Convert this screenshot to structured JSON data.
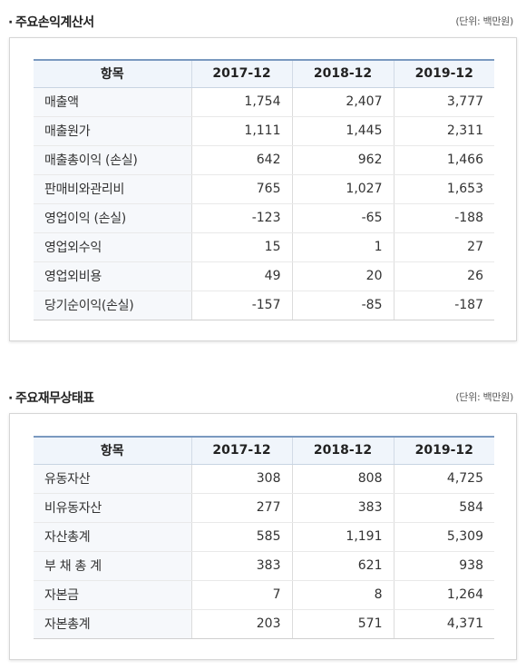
{
  "income": {
    "title": "주요손익계산서",
    "unit": "(단위: 백만원)",
    "headers": [
      "항목",
      "2017-12",
      "2018-12",
      "2019-12"
    ],
    "rows": [
      {
        "label": "매출액",
        "values": [
          "1,754",
          "2,407",
          "3,777"
        ]
      },
      {
        "label": "매출원가",
        "values": [
          "1,111",
          "1,445",
          "2,311"
        ]
      },
      {
        "label": "매출총이익 (손실)",
        "values": [
          "642",
          "962",
          "1,466"
        ]
      },
      {
        "label": "판매비와관리비",
        "values": [
          "765",
          "1,027",
          "1,653"
        ]
      },
      {
        "label": "영업이익 (손실)",
        "values": [
          "-123",
          "-65",
          "-188"
        ]
      },
      {
        "label": "영업외수익",
        "values": [
          "15",
          "1",
          "27"
        ]
      },
      {
        "label": "영업외비용",
        "values": [
          "49",
          "20",
          "26"
        ]
      },
      {
        "label": "당기순이익(손실)",
        "values": [
          "-157",
          "-85",
          "-187"
        ]
      }
    ]
  },
  "balance": {
    "title": "주요재무상태표",
    "unit": "(단위: 백만원)",
    "headers": [
      "항목",
      "2017-12",
      "2018-12",
      "2019-12"
    ],
    "rows": [
      {
        "label": "유동자산",
        "values": [
          "308",
          "808",
          "4,725"
        ]
      },
      {
        "label": "비유동자산",
        "values": [
          "277",
          "383",
          "584"
        ]
      },
      {
        "label": "자산총계",
        "values": [
          "585",
          "1,191",
          "5,309"
        ]
      },
      {
        "label": "부 채 총 계",
        "values": [
          "383",
          "621",
          "938"
        ]
      },
      {
        "label": "자본금",
        "values": [
          "7",
          "8",
          "1,264"
        ]
      },
      {
        "label": "자본총계",
        "values": [
          "203",
          "571",
          "4,371"
        ]
      }
    ]
  }
}
